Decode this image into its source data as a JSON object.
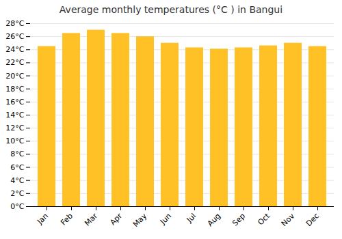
{
  "chart_data": {
    "type": "bar",
    "title": "Average monthly temperatures (°C ) in Bangui",
    "categories": [
      "Jan",
      "Feb",
      "Mar",
      "Apr",
      "May",
      "Jun",
      "Jul",
      "Aug",
      "Sep",
      "Oct",
      "Nov",
      "Dec"
    ],
    "values": [
      24.5,
      26.5,
      27.0,
      26.5,
      26.0,
      25.0,
      24.3,
      24.1,
      24.3,
      24.6,
      25.0,
      24.5
    ],
    "color": "#FFC125",
    "ylim": [
      0,
      28
    ],
    "yticks": [
      {
        "value": 0,
        "label": "0°C"
      },
      {
        "value": 2,
        "label": "2°C"
      },
      {
        "value": 4,
        "label": "4°C"
      },
      {
        "value": 6,
        "label": "6°C"
      },
      {
        "value": 8,
        "label": "8°C"
      },
      {
        "value": 10,
        "label": "10°C"
      },
      {
        "value": 12,
        "label": "12°C"
      },
      {
        "value": 14,
        "label": "14°C"
      },
      {
        "value": 16,
        "label": "16°C"
      },
      {
        "value": 18,
        "label": "18°C"
      },
      {
        "value": 20,
        "label": "20°C"
      },
      {
        "value": 22,
        "label": "22°C"
      },
      {
        "value": 24,
        "label": "24°C"
      },
      {
        "value": 26,
        "label": "26°C"
      },
      {
        "value": 28,
        "label": "28°C"
      }
    ],
    "grid": true
  }
}
